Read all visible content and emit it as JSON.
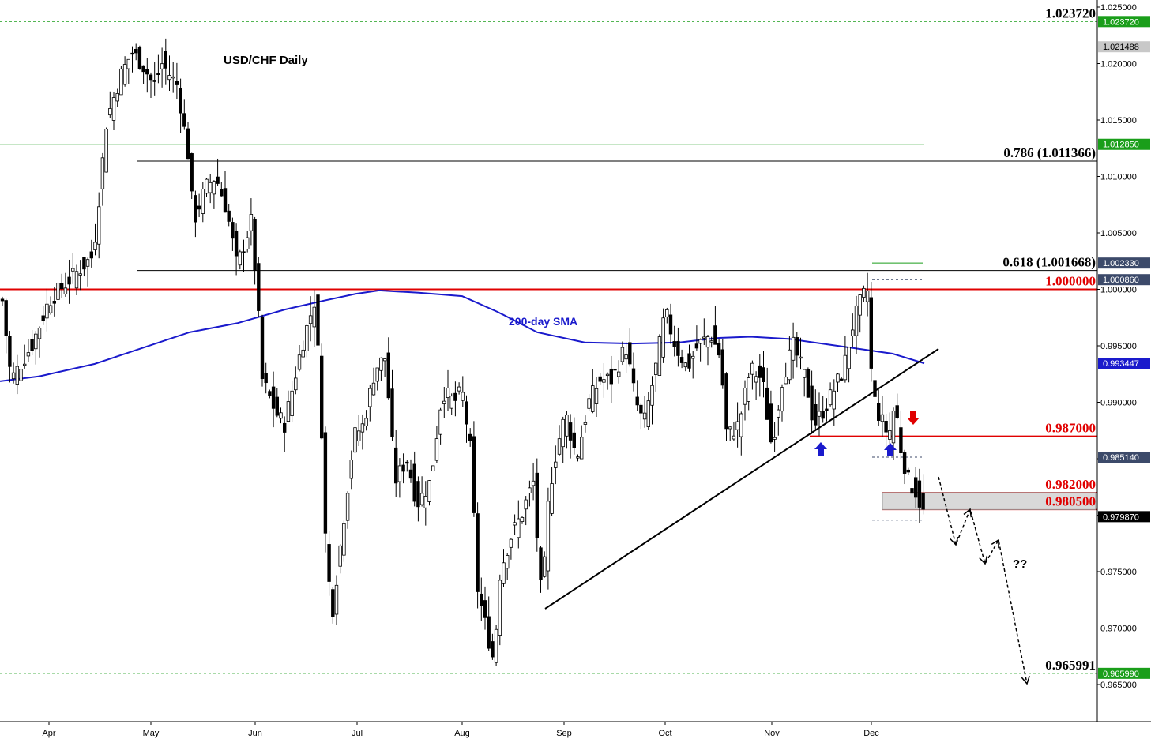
{
  "chart_data": {
    "type": "candlestick",
    "title": "USD/CHF Daily",
    "sma_label": "200-day SMA",
    "x_labels": [
      "Apr",
      "May",
      "Jun",
      "Jul",
      "Aug",
      "Sep",
      "Oct",
      "Nov",
      "Dec"
    ],
    "y_ticks": [
      "1.025000",
      "1.020000",
      "1.015000",
      "1.010000",
      "1.005000",
      "1.000000",
      "0.995000",
      "0.990000",
      "0.985000",
      "0.980000",
      "0.975000",
      "0.970000",
      "0.965000"
    ],
    "ylim": [
      0.9615,
      1.0254
    ],
    "levels": [
      {
        "value": 1.02372,
        "text": "1.023720",
        "color": "#000000"
      },
      {
        "value": 1.011366,
        "text": "0.786 (1.011366)",
        "color": "#000000"
      },
      {
        "value": 1.001668,
        "text": "0.618 (1.001668)",
        "color": "#000000"
      },
      {
        "value": 1.0,
        "text": "1.000000",
        "color": "#e00000"
      },
      {
        "value": 0.987,
        "text": "0.987000",
        "color": "#e00000"
      },
      {
        "value": 0.982,
        "text": "0.982000",
        "color": "#e00000"
      },
      {
        "value": 0.9805,
        "text": "0.980500",
        "color": "#e00000"
      },
      {
        "value": 0.965991,
        "text": "0.965991",
        "color": "#000000"
      }
    ],
    "price_tags": [
      {
        "text": "1.023720",
        "value": 1.02372,
        "bg": "#1a9e1a",
        "fg": "#ffffff"
      },
      {
        "text": "1.021488",
        "value": 1.021488,
        "bg": "#c8c8c8",
        "fg": "#000000"
      },
      {
        "text": "1.012850",
        "value": 1.01285,
        "bg": "#1a9e1a",
        "fg": "#ffffff"
      },
      {
        "text": "1.002330",
        "value": 1.00233,
        "bg": "#3c4a6a",
        "fg": "#ffffff"
      },
      {
        "text": "1.000860",
        "value": 1.00086,
        "bg": "#3c4a6a",
        "fg": "#ffffff"
      },
      {
        "text": "0.993447",
        "value": 0.993447,
        "bg": "#1a1acc",
        "fg": "#ffffff"
      },
      {
        "text": "0.985140",
        "value": 0.98514,
        "bg": "#3c4a6a",
        "fg": "#ffffff"
      },
      {
        "text": "0.979870",
        "value": 0.97987,
        "bg": "#000000",
        "fg": "#ffffff"
      },
      {
        "text": "0.965990",
        "value": 0.96599,
        "bg": "#1a9e1a",
        "fg": "#ffffff"
      }
    ],
    "annotation": "??",
    "colors": {
      "bull": "#ffffff",
      "bear": "#000000",
      "sma": "#1a1acc",
      "resistance": "#e00000",
      "support": "#1a9e1a",
      "arrow_up": "#1a1acc",
      "arrow_down": "#e00000"
    }
  }
}
